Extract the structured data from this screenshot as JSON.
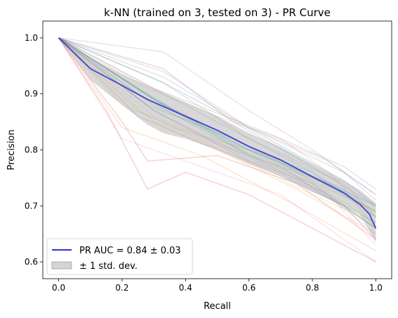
{
  "chart_data": {
    "type": "line",
    "title": "k-NN (trained on 3, tested on 3) -  PR Curve",
    "xlabel": "Recall",
    "ylabel": "Precision",
    "xlim": [
      -0.05,
      1.05
    ],
    "ylim": [
      0.57,
      1.03
    ],
    "xticks": [
      0.0,
      0.2,
      0.4,
      0.6,
      0.8,
      1.0
    ],
    "yticks": [
      0.6,
      0.7,
      0.8,
      0.9,
      1.0
    ],
    "xtick_labels": [
      "0.0",
      "0.2",
      "0.4",
      "0.6",
      "0.8",
      "1.0"
    ],
    "ytick_labels": [
      "0.6",
      "0.7",
      "0.8",
      "0.9",
      "1.0"
    ],
    "grid": false,
    "legend": {
      "placement": "lower-left",
      "entries": [
        {
          "label": "PR AUC = 0.84 ± 0.03",
          "kind": "line",
          "color": "#3333dd"
        },
        {
          "label": "± 1 std. dev.",
          "kind": "patch",
          "color": "#a9a9a9"
        }
      ]
    },
    "mean_curve": {
      "color": "#3333dd",
      "x": [
        0.0,
        0.1,
        0.2,
        0.28,
        0.4,
        0.5,
        0.6,
        0.7,
        0.8,
        0.9,
        0.95,
        0.98,
        1.0
      ],
      "y": [
        1.0,
        0.945,
        0.915,
        0.89,
        0.86,
        0.835,
        0.806,
        0.782,
        0.752,
        0.723,
        0.703,
        0.685,
        0.66
      ]
    },
    "std_band": {
      "color": "#a9a9a9",
      "x": [
        0.0,
        0.1,
        0.2,
        0.28,
        0.33,
        0.4,
        0.5,
        0.6,
        0.7,
        0.8,
        0.9,
        0.95,
        1.0
      ],
      "upper": [
        1.0,
        0.965,
        0.935,
        0.915,
        0.903,
        0.885,
        0.86,
        0.83,
        0.805,
        0.775,
        0.745,
        0.728,
        0.705
      ],
      "lower": [
        1.0,
        0.925,
        0.88,
        0.845,
        0.83,
        0.82,
        0.8,
        0.775,
        0.753,
        0.725,
        0.7,
        0.685,
        0.635
      ]
    },
    "fold_curves": [
      {
        "color": "#1f77b4",
        "x": [
          0,
          0.3,
          0.55,
          0.8,
          1.0
        ],
        "y": [
          1,
          0.87,
          0.8,
          0.73,
          0.67
        ]
      },
      {
        "color": "#ff7f0e",
        "x": [
          0,
          0.25,
          0.5,
          0.75,
          1.0
        ],
        "y": [
          1,
          0.86,
          0.8,
          0.73,
          0.65
        ]
      },
      {
        "color": "#2ca02c",
        "x": [
          0,
          0.33,
          0.6,
          0.85,
          1.0
        ],
        "y": [
          1,
          0.88,
          0.79,
          0.72,
          0.66
        ]
      },
      {
        "color": "#d62728",
        "x": [
          0,
          0.2,
          0.28,
          0.5,
          0.75,
          1.0
        ],
        "y": [
          1,
          0.85,
          0.78,
          0.79,
          0.74,
          0.64
        ]
      },
      {
        "color": "#9467bd",
        "x": [
          0,
          0.33,
          0.6,
          0.8,
          1.0
        ],
        "y": [
          1,
          0.975,
          0.87,
          0.8,
          0.72
        ]
      },
      {
        "color": "#8c564b",
        "x": [
          0,
          0.33,
          0.55,
          0.8,
          1.0
        ],
        "y": [
          1,
          0.945,
          0.85,
          0.77,
          0.7
        ]
      },
      {
        "color": "#e377c2",
        "x": [
          0,
          0.2,
          0.4,
          0.7,
          1.0
        ],
        "y": [
          1,
          0.82,
          0.78,
          0.72,
          0.6
        ]
      },
      {
        "color": "#7f7f7f",
        "x": [
          0,
          0.33,
          0.6,
          0.9,
          1.0
        ],
        "y": [
          1,
          0.93,
          0.84,
          0.76,
          0.71
        ]
      },
      {
        "color": "#bcbd22",
        "x": [
          0,
          0.3,
          0.6,
          0.85,
          1.0
        ],
        "y": [
          1,
          0.85,
          0.8,
          0.74,
          0.68
        ]
      },
      {
        "color": "#17becf",
        "x": [
          0,
          0.28,
          0.55,
          0.8,
          1.0
        ],
        "y": [
          1,
          0.9,
          0.81,
          0.76,
          0.69
        ]
      },
      {
        "color": "#1f77b4",
        "x": [
          0,
          0.33,
          0.66,
          0.9,
          1.0
        ],
        "y": [
          1,
          0.92,
          0.82,
          0.745,
          0.7
        ]
      },
      {
        "color": "#ff7f0e",
        "x": [
          0,
          0.28,
          0.5,
          0.7,
          0.85,
          1.0
        ],
        "y": [
          1,
          0.91,
          0.86,
          0.82,
          0.76,
          0.68
        ]
      },
      {
        "color": "#2ca02c",
        "x": [
          0,
          0.3,
          0.6,
          0.9,
          1.0
        ],
        "y": [
          1,
          0.89,
          0.8,
          0.73,
          0.66
        ]
      },
      {
        "color": "#d62728",
        "x": [
          0,
          0.15,
          0.28,
          0.4,
          0.6,
          1.0
        ],
        "y": [
          1,
          0.87,
          0.73,
          0.76,
          0.72,
          0.6
        ]
      },
      {
        "color": "#9467bd",
        "x": [
          0,
          0.33,
          0.6,
          0.85,
          1.0
        ],
        "y": [
          1,
          0.94,
          0.84,
          0.78,
          0.72
        ]
      },
      {
        "color": "#8c564b",
        "x": [
          0,
          0.3,
          0.55,
          0.8,
          1.0
        ],
        "y": [
          1,
          0.89,
          0.82,
          0.75,
          0.69
        ]
      },
      {
        "color": "#e377c2",
        "x": [
          0,
          0.25,
          0.5,
          0.8,
          1.0
        ],
        "y": [
          1,
          0.86,
          0.8,
          0.74,
          0.65
        ]
      },
      {
        "color": "#7f7f7f",
        "x": [
          0,
          0.3,
          0.66,
          0.9,
          1.0
        ],
        "y": [
          1,
          0.91,
          0.83,
          0.77,
          0.73
        ]
      },
      {
        "color": "#bcbd22",
        "x": [
          0,
          0.25,
          0.55,
          0.8,
          1.0
        ],
        "y": [
          1,
          0.87,
          0.79,
          0.72,
          0.67
        ]
      },
      {
        "color": "#17becf",
        "x": [
          0,
          0.28,
          0.6,
          0.85,
          1.0
        ],
        "y": [
          1,
          0.9,
          0.79,
          0.74,
          0.7
        ]
      },
      {
        "color": "#1f77b4",
        "x": [
          0,
          0.33,
          0.7,
          1.0
        ],
        "y": [
          1,
          0.88,
          0.77,
          0.66
        ]
      },
      {
        "color": "#ff7f0e",
        "x": [
          0,
          0.2,
          0.45,
          0.75,
          1.0
        ],
        "y": [
          1,
          0.84,
          0.79,
          0.7,
          0.62
        ]
      },
      {
        "color": "#2ca02c",
        "x": [
          0,
          0.28,
          0.55,
          0.85,
          1.0
        ],
        "y": [
          1,
          0.88,
          0.82,
          0.73,
          0.69
        ]
      },
      {
        "color": "#d62728",
        "x": [
          0,
          0.3,
          0.6,
          0.9,
          1.0
        ],
        "y": [
          1,
          0.87,
          0.78,
          0.7,
          0.64
        ]
      },
      {
        "color": "#9467bd",
        "x": [
          0,
          0.33,
          0.6,
          0.8,
          1.0
        ],
        "y": [
          1,
          0.9,
          0.82,
          0.76,
          0.68
        ]
      },
      {
        "color": "#8c564b",
        "x": [
          0,
          0.25,
          0.5,
          0.8,
          1.0
        ],
        "y": [
          1,
          0.9,
          0.82,
          0.74,
          0.66
        ]
      },
      {
        "color": "#e377c2",
        "x": [
          0,
          0.3,
          0.6,
          0.85,
          1.0
        ],
        "y": [
          1,
          0.86,
          0.79,
          0.72,
          0.63
        ]
      },
      {
        "color": "#7f7f7f",
        "x": [
          0,
          0.33,
          0.6,
          0.9,
          1.0
        ],
        "y": [
          1,
          0.92,
          0.82,
          0.74,
          0.68
        ]
      },
      {
        "color": "#bcbd22",
        "x": [
          0,
          0.2,
          0.5,
          0.75,
          1.0
        ],
        "y": [
          1,
          0.88,
          0.81,
          0.76,
          0.67
        ]
      },
      {
        "color": "#17becf",
        "x": [
          0,
          0.3,
          0.6,
          0.85,
          1.0
        ],
        "y": [
          1,
          0.88,
          0.8,
          0.74,
          0.7
        ]
      }
    ]
  }
}
